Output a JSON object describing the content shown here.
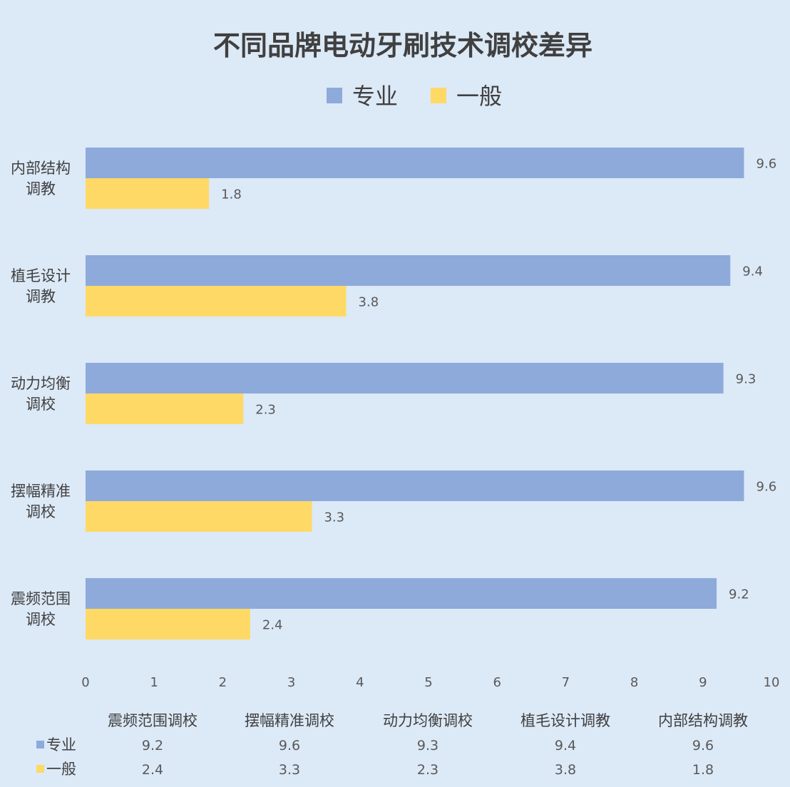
{
  "chart_data": {
    "type": "bar",
    "orientation": "horizontal",
    "title": "不同品牌电动牙刷技术调校差异",
    "legend_position": "top",
    "categories": [
      "内部结构调教",
      "植毛设计调教",
      "动力均衡调校",
      "摆幅精准调校",
      "震频范围调校"
    ],
    "category_display": [
      [
        "内部结构",
        "调教"
      ],
      [
        "植毛设计",
        "调教"
      ],
      [
        "动力均衡",
        "调校"
      ],
      [
        "摆幅精准",
        "调校"
      ],
      [
        "震频范围",
        "调校"
      ]
    ],
    "series": [
      {
        "name": "专业",
        "color": "#8eaadb",
        "values": [
          9.6,
          9.4,
          9.3,
          9.6,
          9.2
        ]
      },
      {
        "name": "一般",
        "color": "#ffd966",
        "values": [
          1.8,
          3.8,
          2.3,
          3.3,
          2.4
        ]
      }
    ],
    "xlim": [
      0,
      10
    ],
    "xticks": [
      0,
      1,
      2,
      3,
      4,
      5,
      6,
      7,
      8,
      9,
      10
    ],
    "grid": false,
    "data_table": {
      "columns": [
        "震频范围调校",
        "摆幅精准调校",
        "动力均衡调校",
        "植毛设计调教",
        "内部结构调教"
      ],
      "rows": [
        {
          "series": "专业",
          "values": [
            "9.2",
            "9.6",
            "9.3",
            "9.4",
            "9.6"
          ]
        },
        {
          "series": "一般",
          "values": [
            "2.4",
            "3.3",
            "2.3",
            "3.8",
            "1.8"
          ]
        }
      ]
    }
  }
}
